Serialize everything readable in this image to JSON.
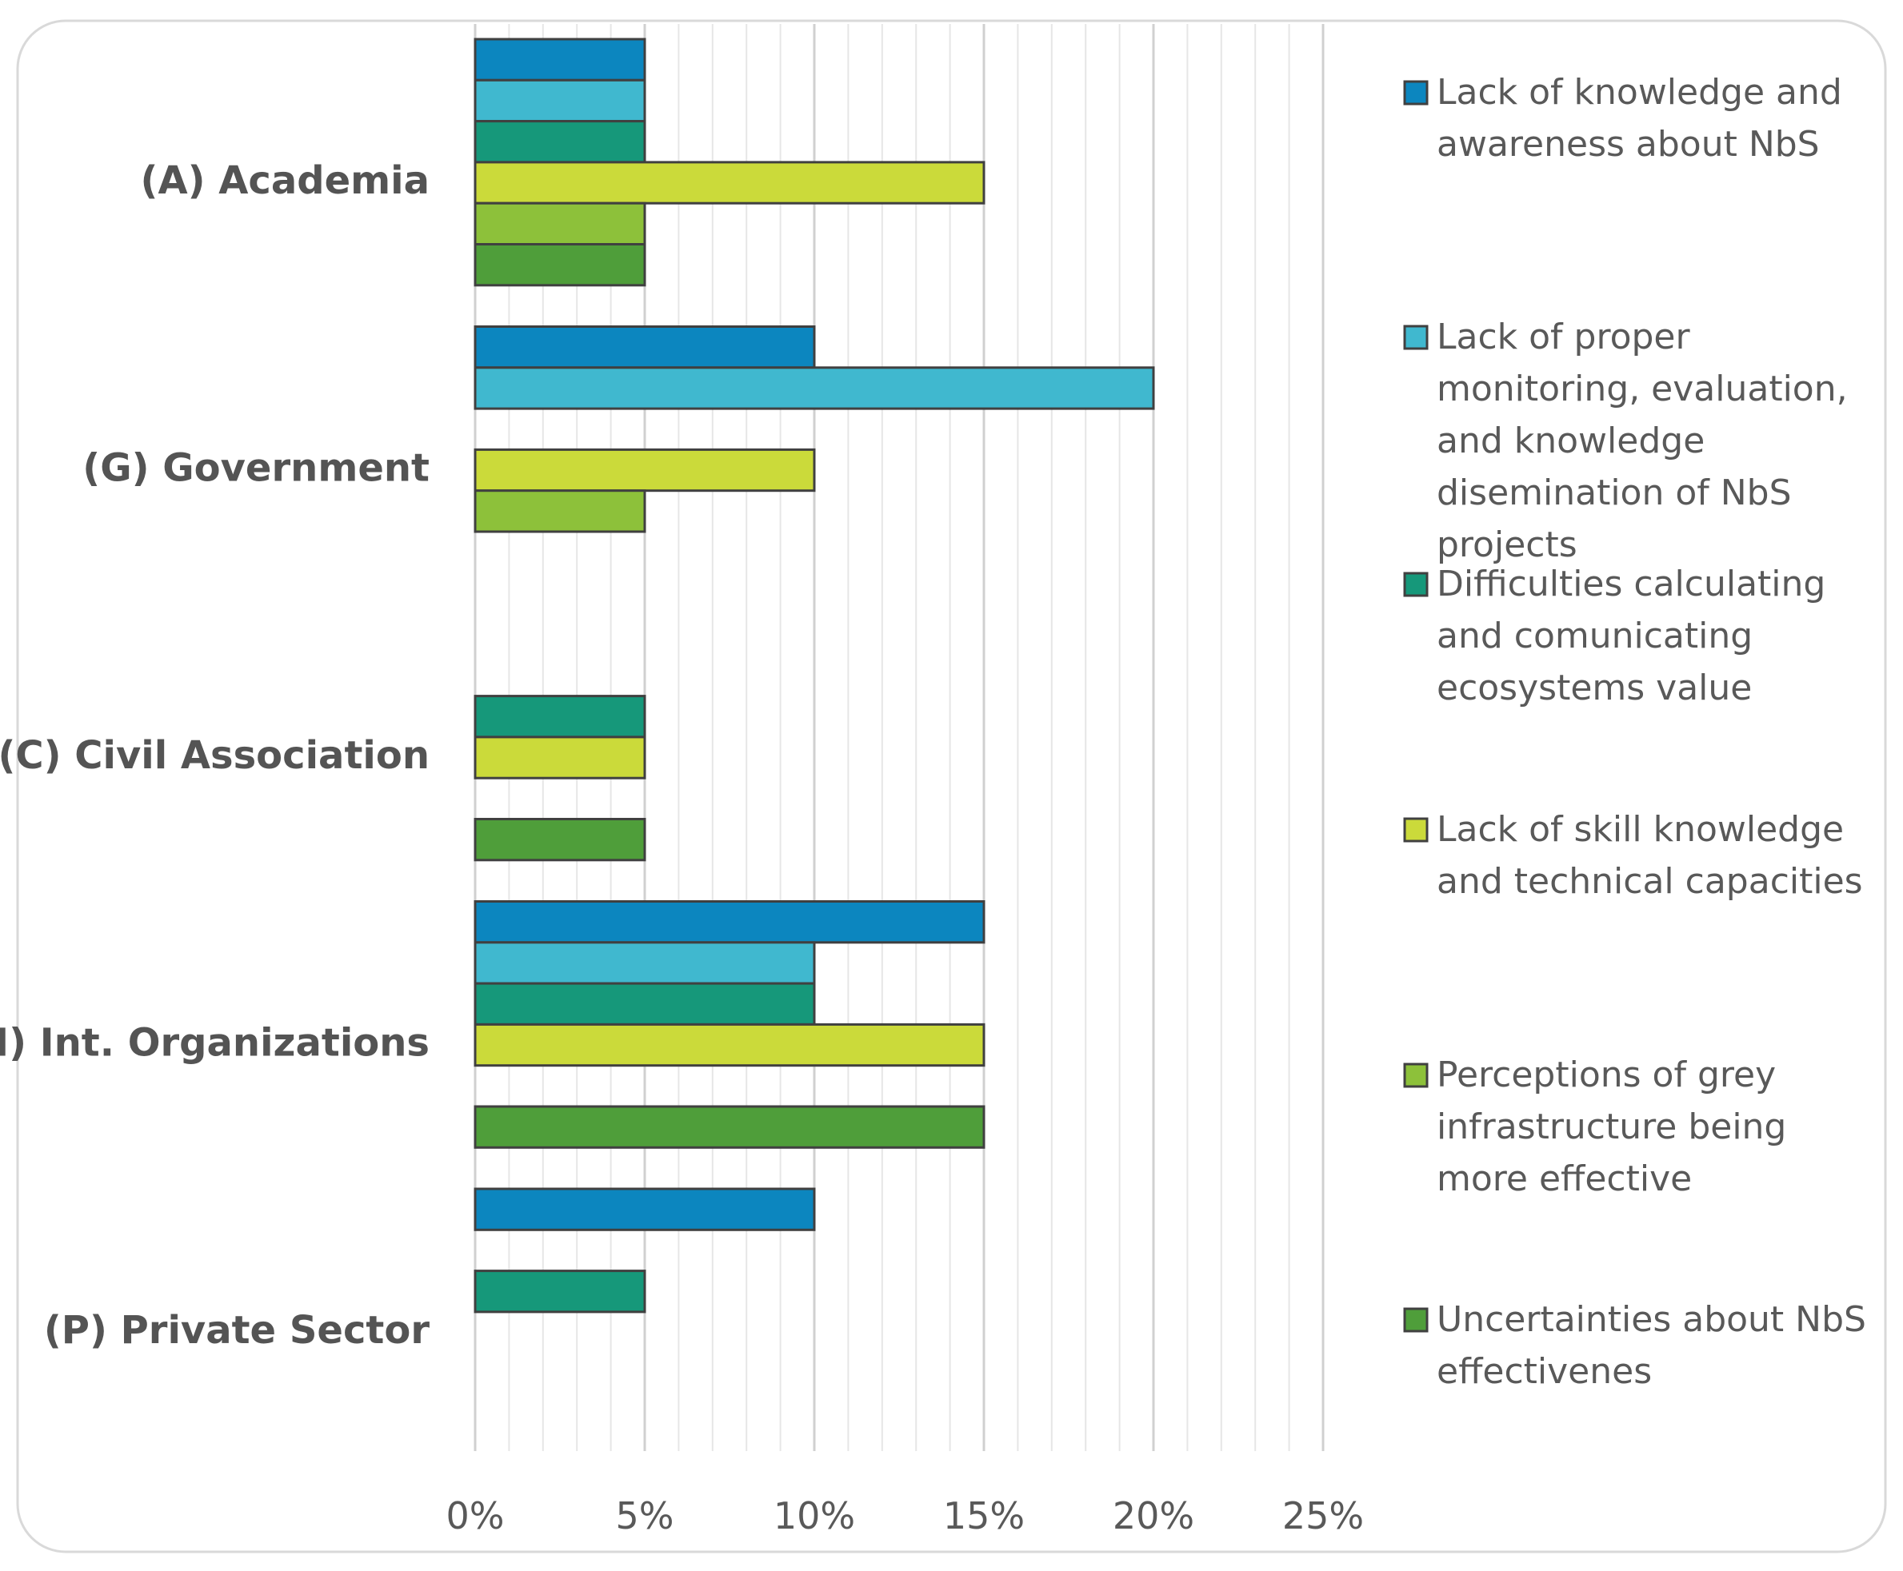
{
  "chart_data": {
    "type": "bar",
    "orientation": "horizontal",
    "title": "",
    "xlabel": "",
    "ylabel": "",
    "xlim": [
      0,
      25
    ],
    "x_ticks": [
      "0%",
      "5%",
      "10%",
      "15%",
      "20%",
      "25%"
    ],
    "grid": "vertical major and minor",
    "legend_position": "right",
    "categories": [
      "(A) Academia",
      "(G) Government",
      "(C) Civil Association",
      "(I) Int. Organizations",
      "(P) Private Sector"
    ],
    "series": [
      {
        "name": "Lack of knowledge and awareness about NbS",
        "lines": [
          "Lack of knowledge and",
          "awareness about NbS"
        ],
        "color": "#0C86BF",
        "values": [
          5,
          10,
          0,
          15,
          10
        ]
      },
      {
        "name": "Lack of proper monitoring, evaluation, and knowledge disemination of NbS projects",
        "lines": [
          "Lack of proper",
          "monitoring, evaluation,",
          "and knowledge",
          "disemination of NbS",
          "projects"
        ],
        "color": "#40B8CF",
        "values": [
          5,
          20,
          0,
          10,
          0
        ]
      },
      {
        "name": "Difficulties calculating and comunicating ecosystems value",
        "lines": [
          "Difficulties calculating",
          "and comunicating",
          "ecosystems value"
        ],
        "color": "#16987A",
        "values": [
          5,
          0,
          5,
          10,
          5
        ]
      },
      {
        "name": "Lack of skill knowledge and technical capacities",
        "lines": [
          "Lack of skill knowledge",
          "and technical capacities"
        ],
        "color": "#CBDA3A",
        "values": [
          15,
          10,
          5,
          15,
          0
        ]
      },
      {
        "name": "Perceptions of grey infrastructure being more effective",
        "lines": [
          "Perceptions of grey",
          "infrastructure being",
          "more effective"
        ],
        "color": "#8DC13A",
        "values": [
          5,
          5,
          0,
          0,
          0
        ]
      },
      {
        "name": "Uncertainties about NbS effectivenes",
        "lines": [
          "Uncertainties about NbS",
          "effectivenes"
        ],
        "color": "#4F9E3A",
        "values": [
          5,
          0,
          5,
          15,
          0
        ]
      }
    ]
  }
}
